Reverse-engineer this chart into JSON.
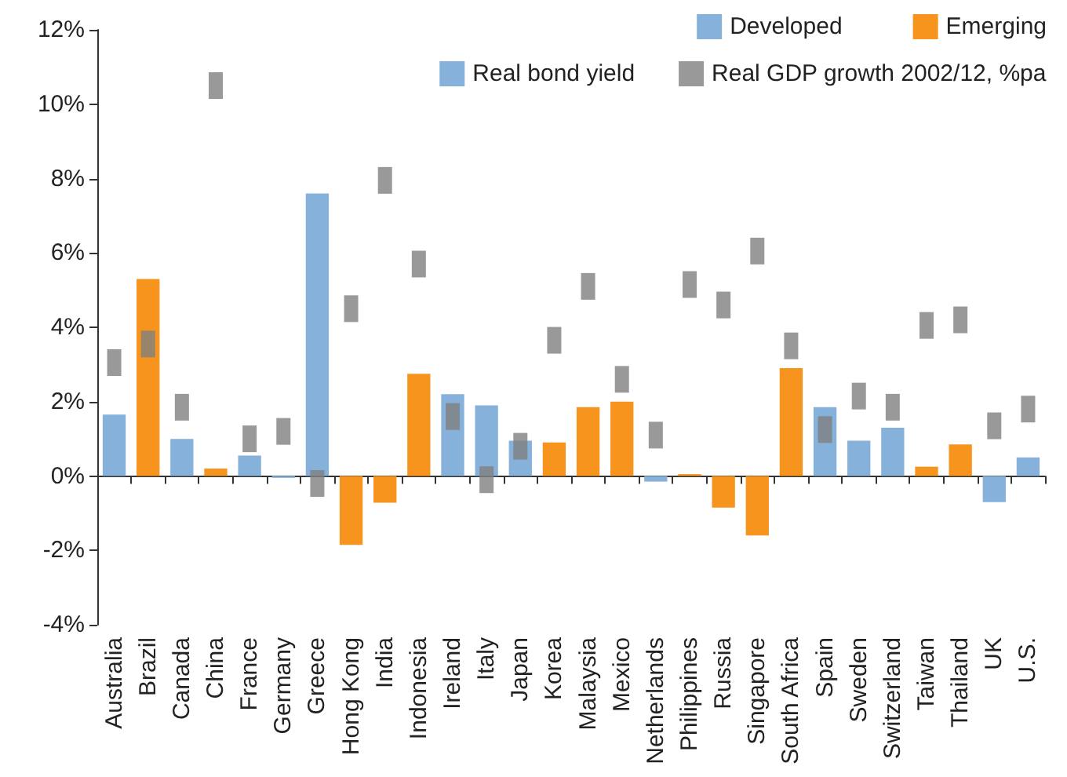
{
  "chart_data": {
    "type": "bar",
    "stacked": true,
    "legend": "top right",
    "legend_title": "Real bond yield",
    "marker": "square",
    "categories": [
      "Australia",
      "Brazil",
      "Canada",
      "China",
      "France",
      "Germany",
      "Greece",
      "Hong Kong",
      "India",
      "Indonesia",
      "Ireland",
      "Italy",
      "Japan",
      "Korea",
      "Malaysia",
      "Mexico",
      "Netherlands",
      "Philippines",
      "Russia",
      "Singapore",
      "South Africa",
      "Spain",
      "Sweden",
      "Switzerland",
      "Taiwan",
      "Thailand",
      "UK",
      "U.S."
    ],
    "ylim": [
      -4,
      12
    ],
    "yticks": [
      {
        "value": -4,
        "label": "-4%"
      },
      {
        "value": -2,
        "label": "-2%"
      },
      {
        "value": 0,
        "label": "0%"
      },
      {
        "value": 2,
        "label": "2%"
      },
      {
        "value": 4,
        "label": "4%"
      },
      {
        "value": 6,
        "label": "6%"
      },
      {
        "value": 8,
        "label": "8%"
      },
      {
        "value": 10,
        "label": "10%"
      },
      {
        "value": 12,
        "label": "12%"
      }
    ],
    "series": [
      {
        "name": "Developed",
        "color": "#85b1da",
        "values": [
          1.65,
          null,
          1.0,
          null,
          0.55,
          -0.05,
          7.6,
          null,
          null,
          null,
          2.2,
          1.9,
          0.95,
          null,
          null,
          null,
          -0.15,
          null,
          null,
          null,
          null,
          1.85,
          0.95,
          1.3,
          null,
          null,
          -0.7,
          0.5
        ]
      },
      {
        "name": "Emerging",
        "color": "#f7941d",
        "values": [
          null,
          5.3,
          null,
          0.2,
          null,
          null,
          null,
          -1.85,
          -0.72,
          2.75,
          null,
          null,
          null,
          0.9,
          1.85,
          2.0,
          null,
          0.05,
          -0.85,
          -1.6,
          2.9,
          null,
          null,
          null,
          0.25,
          0.85,
          null,
          null
        ]
      },
      {
        "name": "Real GDP growth 2002/12, %pa",
        "type": "scatter",
        "color": "#7f7f7f",
        "x": [
          "Australia",
          "Brazil",
          "Canada",
          "China",
          "France",
          "Germany",
          "Greece",
          "Hong Kong",
          "India",
          "Indonesia",
          "Ireland",
          "Italy",
          "Japan",
          "Korea",
          "Malaysia",
          "Mexico",
          "Netherlands",
          "Philippines",
          "Russia",
          "Singapore",
          "South Africa",
          "Spain",
          "Sweden",
          "Switzerland",
          "Taiwan",
          "Thailand",
          "UK",
          "U.S."
        ],
        "values": [
          3.05,
          3.55,
          1.85,
          10.5,
          1.0,
          1.2,
          -0.2,
          4.5,
          7.95,
          5.7,
          1.6,
          -0.1,
          0.8,
          3.65,
          5.1,
          2.6,
          1.1,
          5.15,
          4.6,
          6.05,
          3.5,
          1.25,
          2.15,
          1.85,
          4.05,
          4.2,
          1.35,
          1.8
        ]
      }
    ]
  }
}
